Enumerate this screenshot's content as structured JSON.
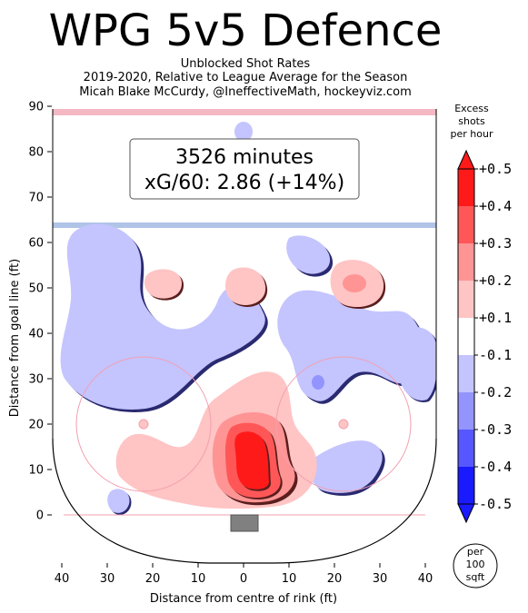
{
  "title": "WPG 5v5 Defence",
  "subtitle_lines": [
    "Unblocked Shot Rates",
    "2019-2020, Relative to League Average for the Season",
    "Micah Blake McCurdy, @IneffectiveMath, hockeyviz.com"
  ],
  "chart_data": {
    "type": "heatmap",
    "xlabel": "Distance from centre of rink (ft)",
    "ylabel": "Distance from goal line (ft)",
    "x_ticks": [
      "40",
      "30",
      "20",
      "10",
      "0",
      "10",
      "20",
      "30",
      "40"
    ],
    "y_ticks": [
      "0",
      "10",
      "20",
      "30",
      "40",
      "50",
      "60",
      "70",
      "80",
      "90"
    ],
    "xlim": [
      -40,
      40
    ],
    "ylim": [
      -10,
      90
    ],
    "annotation_lines": [
      "3526 minutes",
      "xG/60: 2.86 (+14%)"
    ],
    "colorbar": {
      "title_lines": [
        "Excess",
        "shots",
        "per hour"
      ],
      "ticks": [
        "+0.5",
        "+0.4",
        "+0.3",
        "+0.2",
        "+0.1",
        "-0.1",
        "-0.2",
        "-0.3",
        "-0.4",
        "-0.5"
      ],
      "colors": [
        "#ff1a1a",
        "#ff5757",
        "#ff9494",
        "#ffc4c4",
        "#ffffff",
        "#c4c4ff",
        "#9494ff",
        "#5757ff",
        "#1a1aff"
      ],
      "unit_lines": [
        "per",
        "100",
        "sqft"
      ]
    },
    "colors": {
      "blue_line": "#b0c4e8",
      "goal_line": "#f4b8c4",
      "faceoff_circle": "#f2a0b0"
    }
  }
}
